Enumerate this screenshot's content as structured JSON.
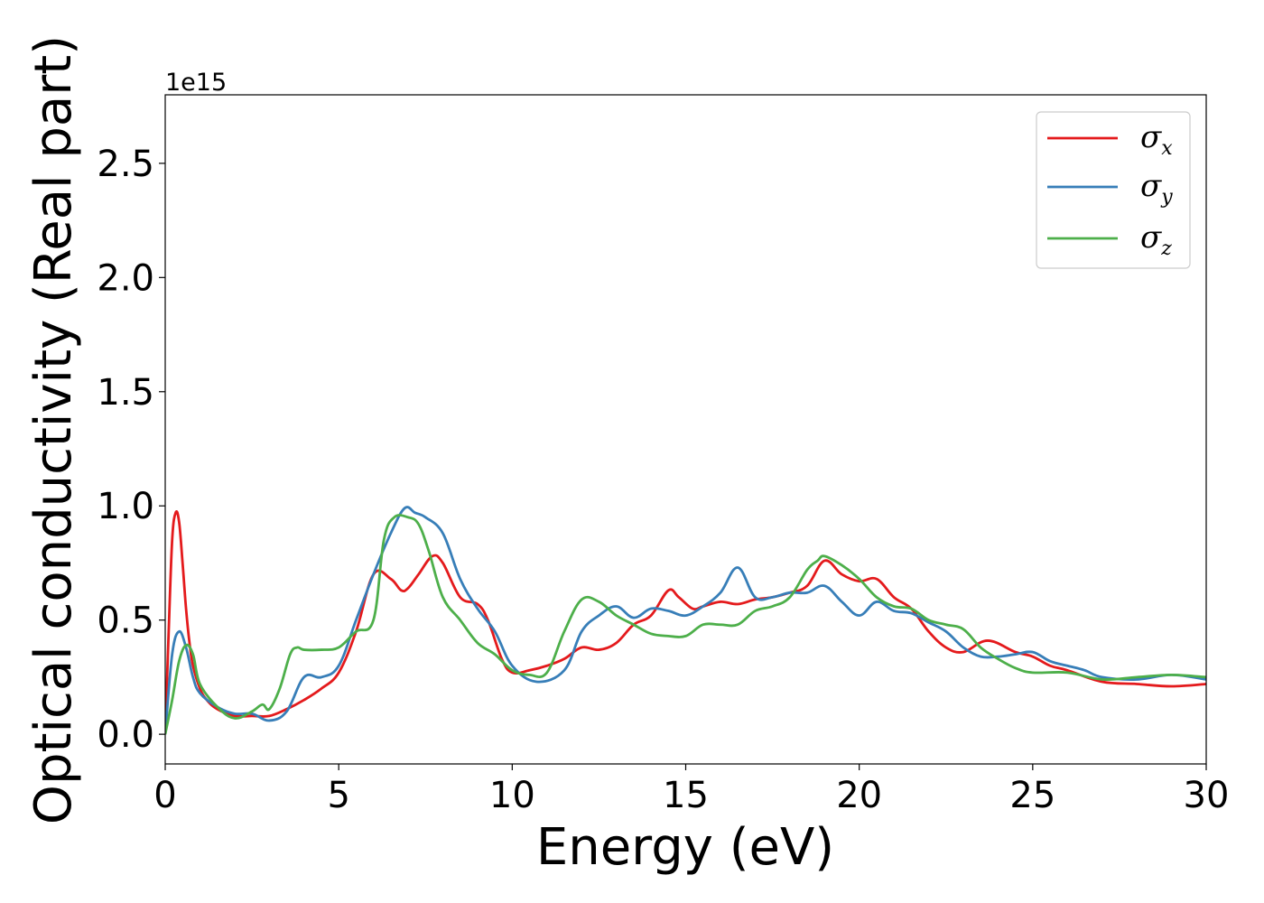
{
  "chart_data": {
    "type": "line",
    "title": "",
    "xlabel": "Energy (eV)",
    "ylabel": "Optical conductivity (Real part)",
    "y_offset_label": "1e15",
    "xlim": [
      0,
      30
    ],
    "ylim": [
      -0.13,
      2.8
    ],
    "x_ticks": [
      0,
      5,
      10,
      15,
      20,
      25,
      30
    ],
    "x_tick_labels": [
      "0",
      "5",
      "10",
      "15",
      "20",
      "25",
      "30"
    ],
    "y_ticks": [
      0.0,
      0.5,
      1.0,
      1.5,
      2.0,
      2.5
    ],
    "y_tick_labels": [
      "0.0",
      "0.5",
      "1.0",
      "1.5",
      "2.0",
      "2.5"
    ],
    "grid": false,
    "legend_position": "top-right",
    "series": [
      {
        "name": "σ",
        "subscript": "x",
        "color": "#e41a1c",
        "x": [
          0,
          0.1,
          0.2,
          0.3,
          0.4,
          0.5,
          0.6,
          0.7,
          0.8,
          1.0,
          1.2,
          1.5,
          2.0,
          2.5,
          3.0,
          3.5,
          4.0,
          4.5,
          5.0,
          5.5,
          6.0,
          6.5,
          6.8,
          7.0,
          7.3,
          7.7,
          8.0,
          8.5,
          9.0,
          9.3,
          9.7,
          10.0,
          10.5,
          11.0,
          11.5,
          12.0,
          12.5,
          13.0,
          13.5,
          14.0,
          14.5,
          14.8,
          15.2,
          15.5,
          16.0,
          16.5,
          17.0,
          17.5,
          18.0,
          18.5,
          19.0,
          19.5,
          20.0,
          20.5,
          21.0,
          21.5,
          22.0,
          22.5,
          23.0,
          23.7,
          24.5,
          25.0,
          25.5,
          26.0,
          27.0,
          28.0,
          29.0,
          30.0
        ],
        "y": [
          0.0,
          0.45,
          0.85,
          0.97,
          0.93,
          0.75,
          0.55,
          0.4,
          0.3,
          0.2,
          0.15,
          0.11,
          0.08,
          0.08,
          0.08,
          0.11,
          0.15,
          0.2,
          0.27,
          0.45,
          0.7,
          0.68,
          0.63,
          0.64,
          0.7,
          0.78,
          0.75,
          0.6,
          0.57,
          0.5,
          0.33,
          0.27,
          0.28,
          0.3,
          0.33,
          0.38,
          0.37,
          0.4,
          0.48,
          0.52,
          0.63,
          0.6,
          0.55,
          0.56,
          0.58,
          0.57,
          0.59,
          0.6,
          0.62,
          0.65,
          0.76,
          0.7,
          0.67,
          0.68,
          0.6,
          0.55,
          0.45,
          0.38,
          0.36,
          0.41,
          0.36,
          0.34,
          0.3,
          0.28,
          0.23,
          0.22,
          0.21,
          0.22
        ]
      },
      {
        "name": "σ",
        "subscript": "y",
        "color": "#377eb8",
        "x": [
          0,
          0.2,
          0.4,
          0.6,
          0.8,
          1.0,
          1.5,
          2.0,
          2.5,
          3.0,
          3.5,
          4.0,
          4.5,
          5.0,
          5.5,
          6.0,
          6.5,
          6.9,
          7.2,
          7.5,
          8.0,
          8.5,
          9.0,
          9.5,
          10.0,
          10.7,
          11.5,
          12.0,
          12.5,
          13.0,
          13.5,
          14.0,
          14.5,
          15.0,
          15.5,
          16.0,
          16.5,
          17.0,
          17.5,
          18.0,
          18.5,
          19.0,
          19.5,
          20.0,
          20.5,
          21.0,
          21.5,
          22.0,
          22.5,
          23.0,
          23.5,
          24.0,
          24.5,
          25.0,
          25.5,
          26.0,
          26.5,
          27.0,
          28.0,
          29.0,
          30.0
        ],
        "y": [
          0.0,
          0.35,
          0.45,
          0.38,
          0.25,
          0.18,
          0.12,
          0.09,
          0.09,
          0.06,
          0.1,
          0.25,
          0.25,
          0.3,
          0.5,
          0.7,
          0.88,
          0.99,
          0.97,
          0.95,
          0.88,
          0.68,
          0.55,
          0.45,
          0.3,
          0.23,
          0.28,
          0.45,
          0.52,
          0.56,
          0.51,
          0.55,
          0.54,
          0.52,
          0.56,
          0.62,
          0.73,
          0.6,
          0.6,
          0.62,
          0.62,
          0.65,
          0.58,
          0.52,
          0.58,
          0.54,
          0.53,
          0.49,
          0.45,
          0.38,
          0.34,
          0.34,
          0.35,
          0.36,
          0.32,
          0.3,
          0.28,
          0.25,
          0.24,
          0.26,
          0.24
        ]
      },
      {
        "name": "σ",
        "subscript": "z",
        "color": "#4daf4a",
        "x": [
          0,
          0.2,
          0.4,
          0.6,
          0.8,
          1.0,
          1.5,
          2.0,
          2.5,
          2.8,
          3.0,
          3.3,
          3.6,
          3.8,
          4.0,
          4.5,
          5.0,
          5.5,
          6.0,
          6.3,
          6.6,
          7.0,
          7.3,
          7.6,
          8.0,
          8.5,
          9.0,
          9.5,
          10.0,
          10.5,
          11.0,
          11.5,
          12.0,
          12.5,
          13.0,
          13.5,
          14.0,
          14.5,
          15.0,
          15.5,
          16.0,
          16.5,
          17.0,
          17.5,
          18.0,
          18.5,
          18.8,
          19.0,
          19.5,
          20.0,
          20.5,
          21.0,
          21.5,
          22.0,
          22.5,
          23.0,
          23.5,
          24.0,
          24.5,
          25.0,
          26.0,
          27.0,
          28.0,
          29.0,
          30.0
        ],
        "y": [
          0.0,
          0.15,
          0.32,
          0.39,
          0.35,
          0.22,
          0.12,
          0.07,
          0.1,
          0.13,
          0.11,
          0.2,
          0.35,
          0.38,
          0.37,
          0.37,
          0.38,
          0.45,
          0.5,
          0.85,
          0.95,
          0.95,
          0.92,
          0.8,
          0.6,
          0.5,
          0.4,
          0.35,
          0.28,
          0.26,
          0.27,
          0.45,
          0.59,
          0.58,
          0.52,
          0.48,
          0.44,
          0.43,
          0.43,
          0.48,
          0.48,
          0.48,
          0.54,
          0.56,
          0.6,
          0.72,
          0.76,
          0.78,
          0.74,
          0.68,
          0.6,
          0.56,
          0.55,
          0.5,
          0.48,
          0.46,
          0.38,
          0.33,
          0.29,
          0.27,
          0.27,
          0.24,
          0.25,
          0.26,
          0.25
        ]
      }
    ]
  }
}
